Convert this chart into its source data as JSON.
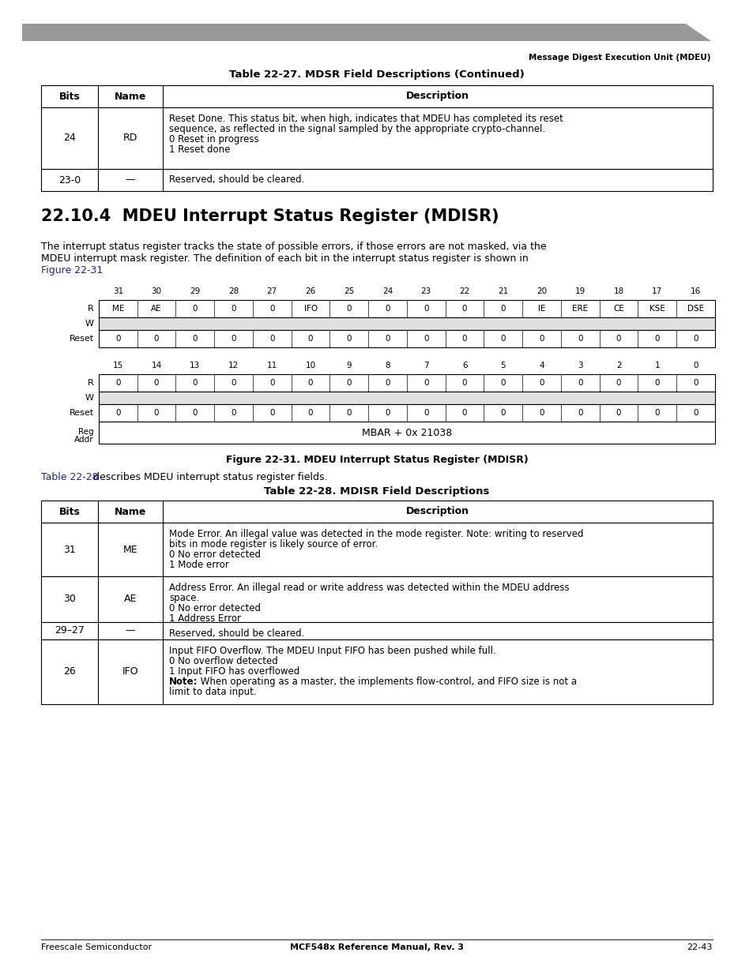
{
  "header_text": "Message Digest Execution Unit (MDEU)",
  "table1_title": "Table 22-27. MDSR Field Descriptions (Continued)",
  "table1_row1_bits": "24",
  "table1_row1_name": "RD",
  "table1_row1_desc": "Reset Done. This status bit, when high, indicates that MDEU has completed its reset\nsequence, as reflected in the signal sampled by the appropriate crypto-channel.\n0 Reset in progress\n1 Reset done",
  "table1_row2_bits": "23-0",
  "table1_row2_name": "—",
  "table1_row2_desc": "Reserved, should be cleared.",
  "section_title": "22.10.4  MDEU Interrupt Status Register (MDISR)",
  "body_line1": "The interrupt status register tracks the state of possible errors, if those errors are not masked, via the",
  "body_line2": "MDEU interrupt mask register. The definition of each bit in the interrupt status register is shown in",
  "body_line3_link": "Figure 22-31",
  "body_line3_rest": ".",
  "reg_top_bits": [
    "31",
    "30",
    "29",
    "28",
    "27",
    "26",
    "25",
    "24",
    "23",
    "22",
    "21",
    "20",
    "19",
    "18",
    "17",
    "16"
  ],
  "reg_top_r": [
    "ME",
    "AE",
    "0",
    "0",
    "0",
    "IFO",
    "0",
    "0",
    "0",
    "0",
    "0",
    "IE",
    "ERE",
    "CE",
    "KSE",
    "DSE"
  ],
  "reg_top_reset": [
    "0",
    "0",
    "0",
    "0",
    "0",
    "0",
    "0",
    "0",
    "0",
    "0",
    "0",
    "0",
    "0",
    "0",
    "0",
    "0"
  ],
  "reg_bot_bits": [
    "15",
    "14",
    "13",
    "12",
    "11",
    "10",
    "9",
    "8",
    "7",
    "6",
    "5",
    "4",
    "3",
    "2",
    "1",
    "0"
  ],
  "reg_bot_r": [
    "0",
    "0",
    "0",
    "0",
    "0",
    "0",
    "0",
    "0",
    "0",
    "0",
    "0",
    "0",
    "0",
    "0",
    "0",
    "0"
  ],
  "reg_bot_reset": [
    "0",
    "0",
    "0",
    "0",
    "0",
    "0",
    "0",
    "0",
    "0",
    "0",
    "0",
    "0",
    "0",
    "0",
    "0",
    "0"
  ],
  "reg_addr": "MBAR + 0x 21038",
  "figure_caption": "Figure 22-31. MDEU Interrupt Status Register (MDISR)",
  "table2_ref_link": "Table 22-28",
  "table2_ref_rest": " describes MDEU interrupt status register fields.",
  "table2_title": "Table 22-28. MDISR Field Descriptions",
  "table2_rows": [
    [
      "31",
      "ME",
      "Mode Error. An illegal value was detected in the mode register. Note: writing to reserved\nbits in mode register is likely source of error.\n0 No error detected\n1 Mode error"
    ],
    [
      "30",
      "AE",
      "Address Error. An illegal read or write address was detected within the MDEU address\nspace.\n0 No error detected\n1 Address Error"
    ],
    [
      "29–27",
      "—",
      "Reserved, should be cleared."
    ],
    [
      "26",
      "IFO",
      "Input FIFO Overflow. The MDEU Input FIFO has been pushed while full.\n0 No overflow detected\n1 Input FIFO has overflowed\nNote:  When operating as a master, the implements flow-control, and FIFO size is not a\nlimit to data input."
    ]
  ],
  "footer_left": "Freescale Semiconductor",
  "footer_center": "MCF548x Reference Manual, Rev. 3",
  "footer_right": "22-43",
  "link_color": "#2222AA",
  "bg_color": "#ffffff"
}
